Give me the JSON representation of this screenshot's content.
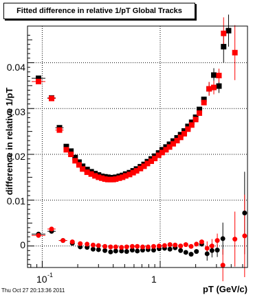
{
  "chart_data": {
    "type": "scatter",
    "title": "Fitted difference in relative 1/pT  Global Tracks",
    "xlabel": "pT (GeV/c)",
    "ylabel": "difference in relative 1/pT",
    "xscale": "log",
    "xlim": [
      0.075,
      5.5
    ],
    "ylim": [
      -0.0047,
      0.048
    ],
    "x_tick_labels": [
      "10",
      "-1",
      "1"
    ],
    "y_tick_labels": [
      "0",
      "0.01",
      "0.02",
      "0.03",
      "0.04"
    ],
    "grid": true,
    "colors": {
      "black_series": "#000000",
      "red_series": "#ff0000"
    },
    "series": [
      {
        "marker": "square",
        "color": "#000000",
        "x": [
          0.093,
          0.12,
          0.14,
          0.16,
          0.175,
          0.19,
          0.205,
          0.22,
          0.24,
          0.26,
          0.28,
          0.3,
          0.32,
          0.34,
          0.36,
          0.38,
          0.4,
          0.42,
          0.45,
          0.48,
          0.51,
          0.55,
          0.59,
          0.63,
          0.68,
          0.73,
          0.78,
          0.84,
          0.9,
          0.97,
          1.04,
          1.12,
          1.2,
          1.29,
          1.39,
          1.49,
          1.6,
          1.72,
          1.85,
          2.0,
          2.15,
          2.35,
          2.6,
          2.85,
          3.15,
          3.45,
          3.8
        ],
        "y": [
          0.0366,
          0.0323,
          0.0258,
          0.0217,
          0.0207,
          0.0193,
          0.0183,
          0.0174,
          0.0167,
          0.0162,
          0.0158,
          0.0155,
          0.0152,
          0.0151,
          0.015,
          0.0149,
          0.0149,
          0.015,
          0.0152,
          0.0154,
          0.0157,
          0.016,
          0.0164,
          0.0168,
          0.0173,
          0.0178,
          0.0184,
          0.019,
          0.0196,
          0.0203,
          0.021,
          0.0216,
          0.0222,
          0.0229,
          0.0236,
          0.0243,
          0.0251,
          0.0261,
          0.027,
          0.0281,
          0.0298,
          0.032,
          0.0343,
          0.0373,
          0.0349,
          0.0435,
          0.047
        ]
      },
      {
        "marker": "square",
        "color": "#ff0000",
        "x": [
          0.093,
          0.12,
          0.14,
          0.16,
          0.175,
          0.19,
          0.205,
          0.22,
          0.24,
          0.26,
          0.28,
          0.3,
          0.32,
          0.34,
          0.36,
          0.38,
          0.4,
          0.42,
          0.45,
          0.48,
          0.51,
          0.55,
          0.59,
          0.63,
          0.68,
          0.73,
          0.78,
          0.84,
          0.9,
          0.97,
          1.04,
          1.12,
          1.2,
          1.29,
          1.39,
          1.49,
          1.6,
          1.72,
          1.85,
          2.0,
          2.15,
          2.35,
          2.6,
          2.85,
          3.15,
          3.45,
          4.3
        ],
        "y": [
          0.0359,
          0.0322,
          0.0253,
          0.021,
          0.02,
          0.0186,
          0.0177,
          0.0168,
          0.0161,
          0.0157,
          0.0153,
          0.015,
          0.0148,
          0.0146,
          0.0145,
          0.0145,
          0.0145,
          0.0146,
          0.0148,
          0.015,
          0.0153,
          0.0156,
          0.016,
          0.0164,
          0.0169,
          0.0174,
          0.018,
          0.0185,
          0.0191,
          0.0198,
          0.0204,
          0.021,
          0.0216,
          0.0223,
          0.023,
          0.0237,
          0.0245,
          0.0255,
          0.0264,
          0.0276,
          0.029,
          0.0313,
          0.0343,
          0.0346,
          0.0372,
          0.0464,
          0.0422
        ]
      },
      {
        "marker": "circle",
        "color": "#000000",
        "x": [
          0.093,
          0.12,
          0.15,
          0.18,
          0.21,
          0.24,
          0.27,
          0.3,
          0.34,
          0.38,
          0.42,
          0.47,
          0.52,
          0.58,
          0.64,
          0.71,
          0.79,
          0.88,
          0.98,
          1.09,
          1.21,
          1.34,
          1.49,
          1.65,
          1.83,
          2.03,
          2.25,
          2.5,
          2.75,
          3.05,
          3.4,
          5.2
        ],
        "y": [
          0.0026,
          0.0032,
          0.0012,
          0.0006,
          -0.0002,
          -0.0003,
          -0.0007,
          -0.0008,
          -0.001,
          -0.0013,
          -0.0011,
          -0.0011,
          -0.0012,
          -0.0009,
          -0.0011,
          -0.0009,
          -0.0008,
          -0.0009,
          -0.0006,
          -0.0005,
          -0.0007,
          -0.0004,
          -0.001,
          -0.0014,
          -0.0018,
          -0.0012,
          0.0004,
          -0.0017,
          -0.001,
          -0.0009,
          0.0016,
          0.0072
        ]
      },
      {
        "marker": "circle",
        "color": "#ff0000",
        "x": [
          0.093,
          0.12,
          0.15,
          0.18,
          0.21,
          0.24,
          0.27,
          0.3,
          0.34,
          0.38,
          0.42,
          0.47,
          0.52,
          0.58,
          0.64,
          0.71,
          0.79,
          0.88,
          0.98,
          1.09,
          1.21,
          1.34,
          1.49,
          1.65,
          1.83,
          2.03,
          2.25,
          2.5,
          2.75,
          3.05,
          3.4,
          4.3,
          5.2
        ],
        "y": [
          0.0023,
          0.0037,
          0.0012,
          0.0009,
          0.0005,
          0.0004,
          0.0002,
          0.0001,
          -0.0001,
          -0.0002,
          -0.0002,
          -0.0003,
          -0.0002,
          -0.0001,
          -0.0001,
          -0.0002,
          -0.0002,
          -0.0001,
          0.0,
          0.0001,
          0.0003,
          0.0002,
          0.0,
          0.0003,
          -0.0001,
          0.0004,
          0.0009,
          -0.0005,
          0.0,
          0.0012,
          -0.0042,
          0.0015,
          0.0022
        ]
      }
    ]
  },
  "footer": "Thu Oct 27 20:13:36 2011"
}
